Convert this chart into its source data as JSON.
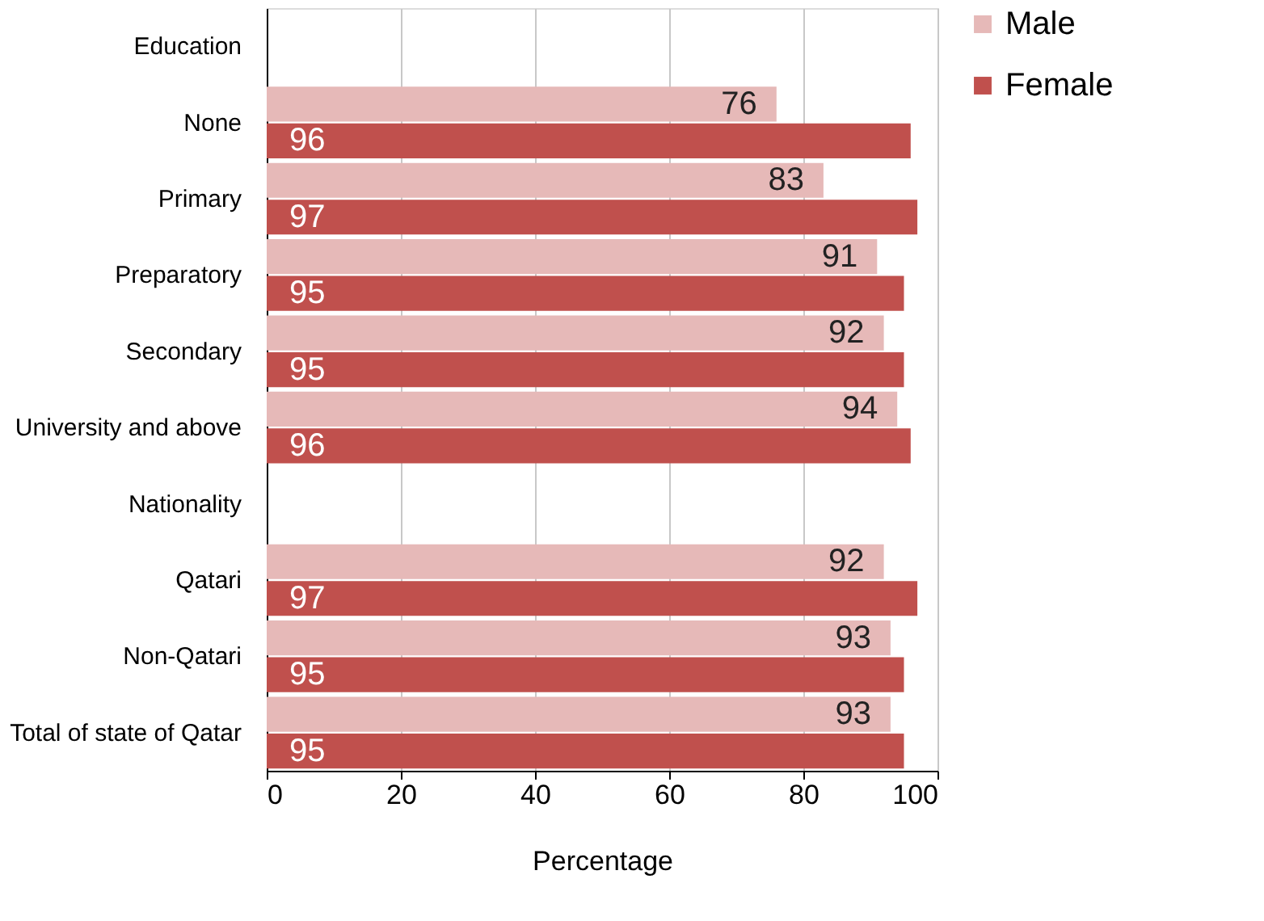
{
  "chart_data": {
    "type": "bar",
    "orientation": "horizontal",
    "xlabel": "Percentage",
    "categories": [
      "Education",
      "None",
      "Primary",
      "Preparatory",
      "Secondary",
      "University and above",
      "Nationality",
      "Qatari",
      "Non-Qatari",
      "Total of state of Qatar"
    ],
    "series": [
      {
        "name": "Male",
        "color": "#e6b9b8",
        "values": [
          null,
          76,
          83,
          91,
          92,
          94,
          null,
          92,
          93,
          93
        ]
      },
      {
        "name": "Female",
        "color": "#c0504d",
        "values": [
          null,
          96,
          97,
          95,
          95,
          96,
          null,
          97,
          95,
          95
        ]
      }
    ],
    "xlim": [
      0,
      100
    ],
    "xticks": [
      0,
      20,
      40,
      60,
      80,
      100
    ],
    "grid": "x",
    "legend": "right",
    "data_labels": true
  }
}
